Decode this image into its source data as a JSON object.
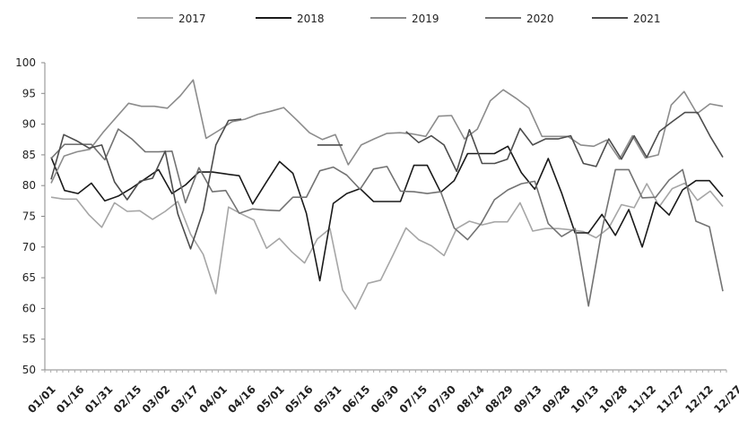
{
  "chart_data": {
    "type": "line",
    "title": "",
    "xlabel": "",
    "ylabel": "",
    "ylim": [
      50,
      100
    ],
    "yticks": [
      50,
      55,
      60,
      65,
      70,
      75,
      80,
      85,
      90,
      95,
      100
    ],
    "grid": false,
    "legend_position": "top",
    "x_tick_labels": [
      "01/01",
      "01/16",
      "01/31",
      "02/15",
      "03/02",
      "03/17",
      "04/01",
      "04/16",
      "05/01",
      "05/16",
      "05/31",
      "06/15",
      "06/30",
      "07/15",
      "07/30",
      "08/14",
      "08/29",
      "09/13",
      "09/28",
      "10/13",
      "10/28",
      "11/12",
      "11/27",
      "12/12",
      "12/27"
    ],
    "series": [
      {
        "name": "2017",
        "color": "#a6a6a6",
        "values": [
          78.1,
          77.8,
          77.8,
          75.2,
          73.2,
          77.2,
          75.8,
          75.9,
          74.5,
          75.8,
          77.4,
          72.1,
          68.8,
          62.4,
          76.5,
          75.4,
          74.4,
          69.8,
          71.4,
          69.2,
          67.4,
          71.3,
          73.0,
          63.0,
          59.9,
          64.1,
          64.6,
          68.8,
          73.1,
          71.2,
          70.2,
          68.6,
          73.0,
          74.2,
          73.6,
          74.1,
          74.1,
          77.2,
          72.6,
          73.0,
          73.0,
          72.8,
          72.5,
          71.5,
          73.1,
          76.9,
          76.4,
          80.3,
          76.6,
          79.5,
          80.4,
          77.6,
          79.1,
          76.6
        ]
      },
      {
        "name": "2018",
        "color": "#1a1a1a",
        "values": [
          84.6,
          79.2,
          78.7,
          80.4,
          77.5,
          78.3,
          79.6,
          81.1,
          82.6,
          78.7,
          80.1,
          82.2,
          82.2,
          81.9,
          81.6,
          77.0,
          80.5,
          83.9,
          82.0,
          75.5,
          64.5,
          77.1,
          78.7,
          79.5,
          77.4,
          77.4,
          77.4,
          83.3,
          83.3,
          78.9,
          80.8,
          85.2,
          85.2,
          85.2,
          86.4,
          82.1,
          79.4,
          84.4,
          78.8,
          72.3,
          72.3,
          75.3,
          71.9,
          76.1,
          70.0,
          77.3,
          75.2,
          79.3,
          80.8,
          80.8,
          78.2
        ]
      },
      {
        "name": "2019",
        "color": "#8c8c8c",
        "values": [
          80.4,
          84.8,
          85.5,
          85.9,
          88.6,
          91.0,
          93.4,
          92.9,
          92.9,
          92.6,
          94.6,
          97.2,
          87.7,
          89.0,
          90.4,
          90.8,
          91.6,
          92.1,
          92.7,
          90.7,
          88.6,
          87.5,
          88.3,
          83.4,
          86.6,
          87.6,
          88.5,
          88.6,
          88.4,
          88.0,
          91.3,
          91.4,
          87.6,
          89.2,
          93.8,
          95.6,
          94.2,
          92.6,
          88.0,
          88.0,
          88.0,
          86.6,
          86.4,
          87.4,
          84.3,
          88.1,
          84.5,
          85.0,
          93.1,
          95.3,
          91.7,
          93.3,
          92.9
        ]
      },
      {
        "name": "2020",
        "color": "#737373",
        "values": [
          84.4,
          86.7,
          86.7,
          86.7,
          84.2,
          89.2,
          87.6,
          85.5,
          85.5,
          85.6,
          77.2,
          82.9,
          79.0,
          79.2,
          75.5,
          76.2,
          76.0,
          75.9,
          78.1,
          78.1,
          82.4,
          83.0,
          81.7,
          79.4,
          82.7,
          83.1,
          79.1,
          79.0,
          78.7,
          79.0,
          73.1,
          71.2,
          73.8,
          77.7,
          79.3,
          80.3,
          80.7,
          73.8,
          71.7,
          73.0,
          60.4,
          72.8,
          82.6,
          82.6,
          78.0,
          78.1,
          80.9,
          82.6,
          74.2,
          73.3,
          62.8
        ]
      },
      {
        "name": "2021",
        "color": "#4d4d4d",
        "values": [
          81.0,
          88.3,
          87.3,
          86.1,
          86.6,
          80.6,
          77.7,
          80.7,
          81.2,
          85.6,
          75.4,
          69.7,
          75.9,
          86.6,
          90.6,
          90.8,
          null,
          null,
          null,
          null,
          null,
          86.6,
          86.6,
          86.6,
          null,
          null,
          null,
          null,
          88.8,
          87.0,
          88.1,
          86.6,
          82.3,
          89.1,
          83.6,
          83.6,
          84.3,
          89.3,
          86.6,
          87.6,
          87.6,
          88.1,
          83.6,
          83.1,
          87.6,
          84.3,
          88.1,
          84.6,
          88.8,
          90.4,
          91.9,
          91.9,
          88.0,
          84.6
        ]
      }
    ]
  }
}
